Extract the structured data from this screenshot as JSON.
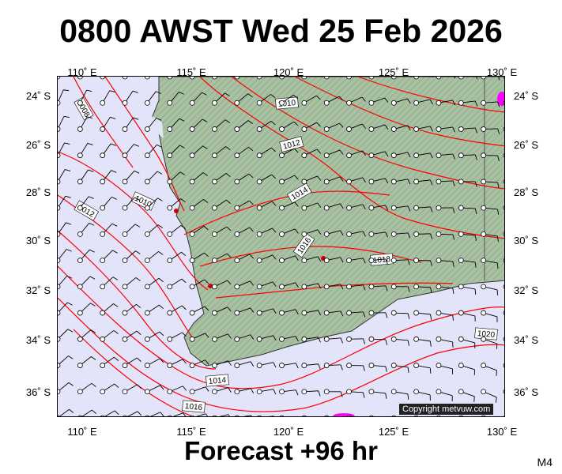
{
  "title": "0800 AWST Wed 25 Feb 2026",
  "footer": "Forecast +96 hr",
  "model_id": "M4",
  "copyright": "Copyright metvuw.com",
  "colors": {
    "ocean": "#e3e3fa",
    "land": "#a9c1a3",
    "isobar": "#ff0000",
    "high_precip": "#ff00ff",
    "wind_barb": "#000000"
  },
  "axes": {
    "longitude_labels": [
      "110˚ E",
      "115˚ E",
      "120˚ E",
      "125˚ E",
      "130˚ E"
    ],
    "latitude_labels": [
      "24˚ S",
      "26˚ S",
      "28˚ S",
      "30˚ S",
      "32˚ S",
      "34˚ S",
      "36˚ S"
    ]
  },
  "isobar_labels": [
    "1008",
    "1010",
    "1010",
    "1012",
    "1012",
    "1014",
    "1014",
    "1016",
    "1016",
    "1018",
    "1020"
  ],
  "wind_barbs": "grid of station wind barbs every 1˚ lat/lon"
}
